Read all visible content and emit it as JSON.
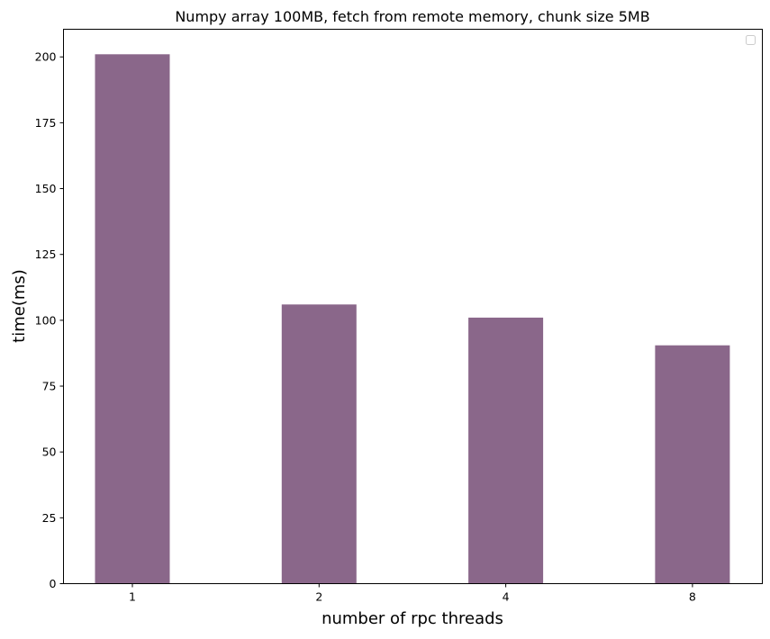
{
  "chart_data": {
    "type": "bar",
    "title": "Numpy array 100MB, fetch from remote memory, chunk size 5MB",
    "xlabel": "number of rpc threads",
    "ylabel": "time(ms)",
    "categories": [
      "1",
      "2",
      "4",
      "8"
    ],
    "values": [
      201,
      106,
      101,
      90.5
    ],
    "ylim": [
      0,
      210.5
    ],
    "yticks": [
      0,
      25,
      50,
      75,
      100,
      125,
      150,
      175,
      200
    ],
    "bar_color": "#8a678a",
    "grid": false,
    "legend": {
      "placement": "top-right",
      "entries": []
    }
  }
}
